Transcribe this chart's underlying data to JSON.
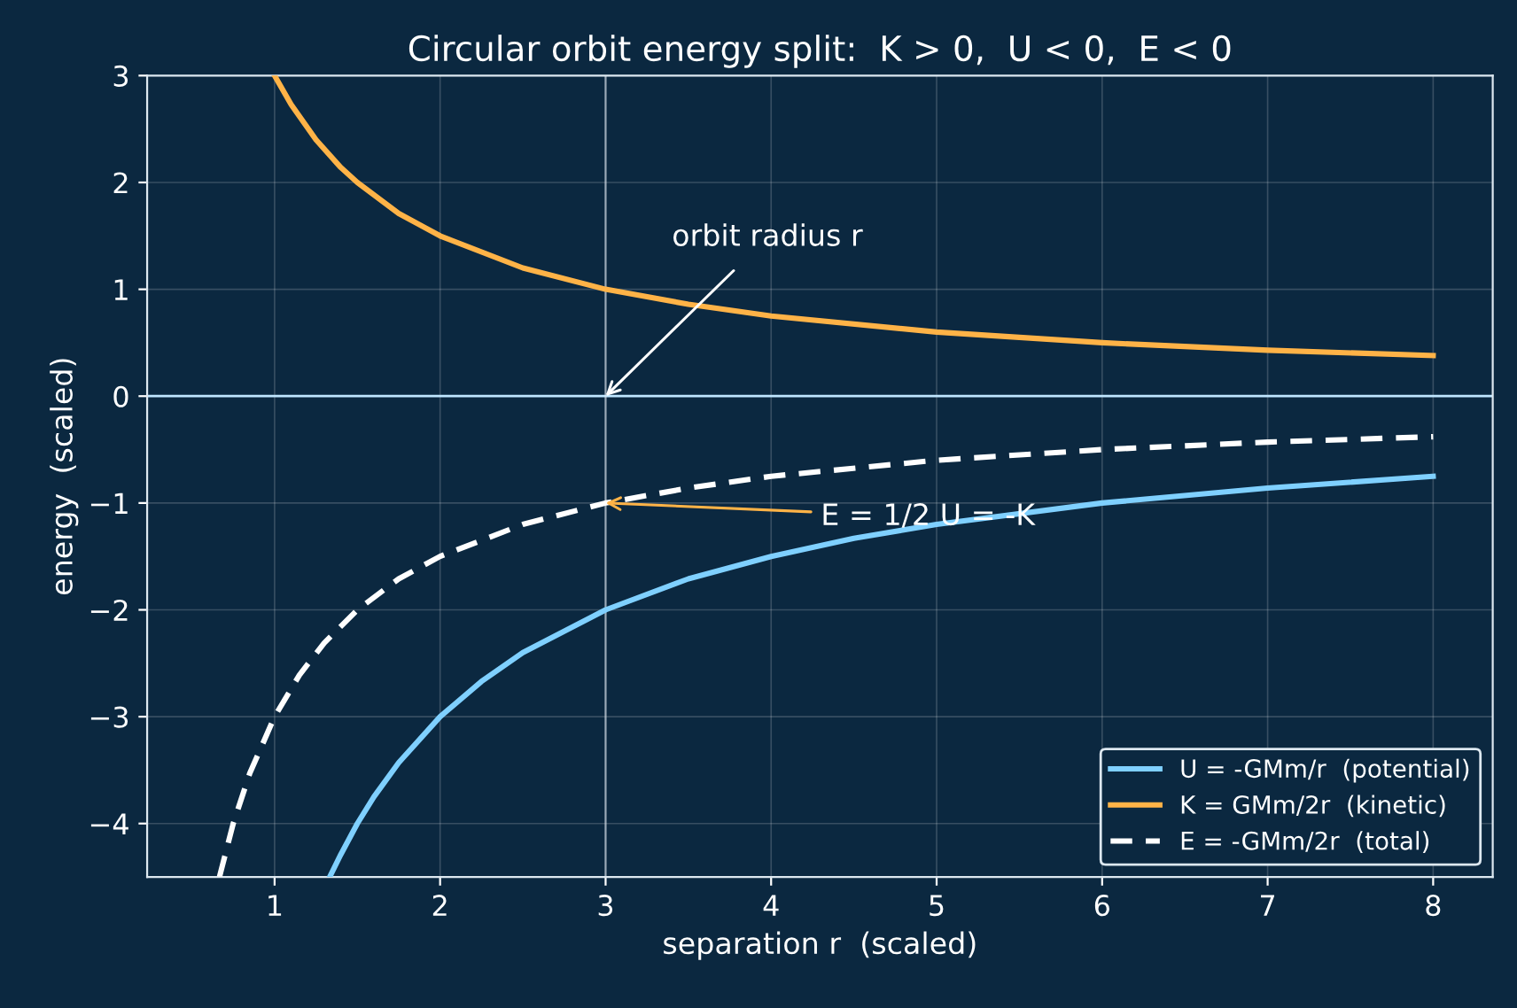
{
  "chart_data": {
    "type": "line",
    "title": "Circular orbit energy split:  K > 0,  U < 0,  E < 0",
    "xlabel": "separation r  (scaled)",
    "ylabel": "energy  (scaled)",
    "series": [
      {
        "name": "U = -GMm/r  (potential)",
        "color": "#7fd0ff",
        "line_style": "solid",
        "x": [
          1.333,
          1.4,
          1.5,
          1.6,
          1.75,
          2,
          2.25,
          2.5,
          3,
          3.5,
          4,
          4.5,
          5,
          6,
          7,
          8
        ],
        "values": [
          -4.5,
          -4.29,
          -4,
          -3.75,
          -3.43,
          -3,
          -2.67,
          -2.4,
          -2,
          -1.71,
          -1.5,
          -1.33,
          -1.2,
          -1,
          -0.86,
          -0.75
        ]
      },
      {
        "name": "K = GMm/2r  (kinetic)",
        "color": "#ffb347",
        "line_style": "solid",
        "x": [
          1,
          1.1,
          1.25,
          1.4,
          1.5,
          1.75,
          2,
          2.5,
          3,
          3.5,
          4,
          5,
          6,
          7,
          8
        ],
        "values": [
          3,
          2.73,
          2.4,
          2.14,
          2,
          1.71,
          1.5,
          1.2,
          1,
          0.86,
          0.75,
          0.6,
          0.5,
          0.43,
          0.38
        ]
      },
      {
        "name": "E = -GMm/2r  (total)",
        "color": "#ffffff",
        "line_style": "dashed",
        "x": [
          0.667,
          0.75,
          0.85,
          1,
          1.15,
          1.3,
          1.5,
          1.75,
          2,
          2.5,
          3,
          3.5,
          4,
          5,
          6,
          7,
          8
        ],
        "values": [
          -4.5,
          -4,
          -3.53,
          -3,
          -2.61,
          -2.31,
          -2,
          -1.71,
          -1.5,
          -1.2,
          -1,
          -0.86,
          -0.75,
          -0.6,
          -0.5,
          -0.43,
          -0.38
        ]
      }
    ],
    "xlim": [
      0.23,
      8.36
    ],
    "xticks": [
      1,
      2,
      3,
      4,
      5,
      6,
      7,
      8
    ],
    "ylim": [
      -4.5,
      3
    ],
    "yticks": [
      {
        "value": -4,
        "label": "−4"
      },
      {
        "value": -3,
        "label": "−3"
      },
      {
        "value": -2,
        "label": "−2"
      },
      {
        "value": -1,
        "label": "−1"
      },
      0,
      1,
      2,
      3
    ],
    "ref_lines": [
      {
        "axis": "y",
        "value": 0,
        "label": null,
        "color": "#bfe6ff"
      },
      {
        "axis": "x",
        "value": 3,
        "label": null,
        "color": "#dde8f0"
      }
    ],
    "annotations": [
      {
        "text": "orbit radius r",
        "x": 3,
        "y": 0
      },
      {
        "text": "E = 1/2 U = -K",
        "x": 3,
        "y": -1
      }
    ],
    "grid": true,
    "legend": "bottom right",
    "marker": "none"
  }
}
